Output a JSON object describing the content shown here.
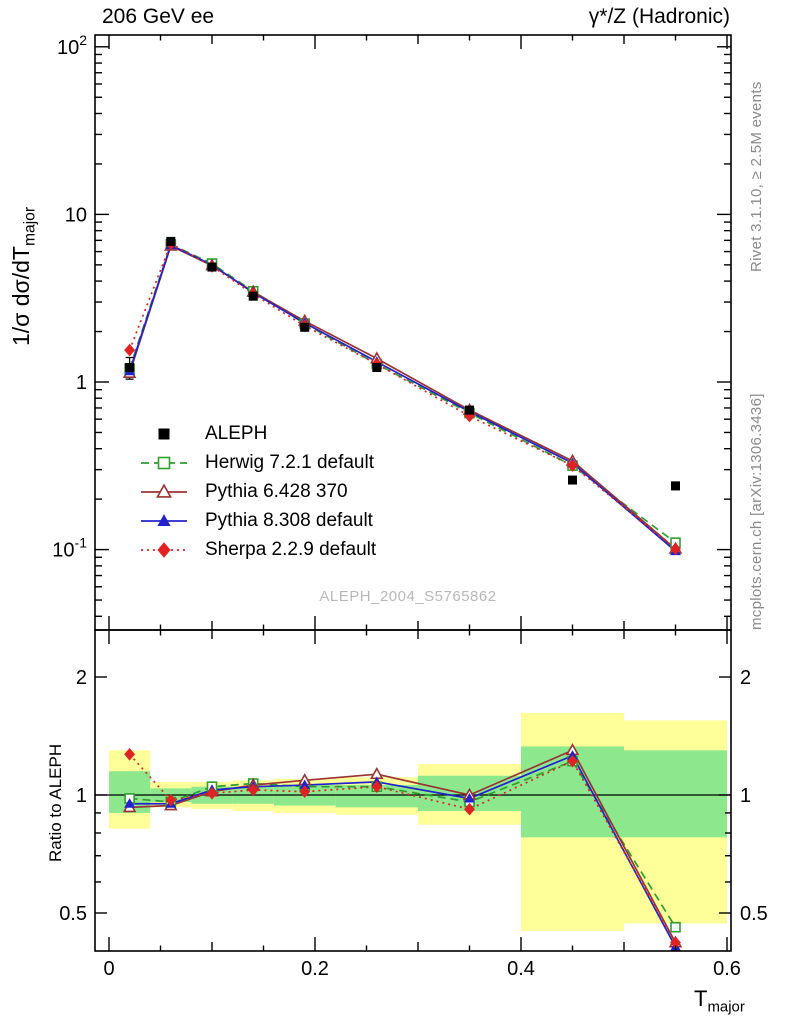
{
  "header": {
    "left": "206 GeV ee",
    "right": "γ*/Z (Hadronic)"
  },
  "side_notes": {
    "top": "Rivet 3.1.10, ≥ 2.5M events",
    "bottom": "mcplots.cern.ch [arXiv:1306.3436]"
  },
  "watermark": "ALEPH_2004_S5765862",
  "axes": {
    "main_ylabel_prefix": "1/σ  dσ/dT",
    "main_ylabel_sub": "major",
    "ratio_ylabel": "Ratio to ALEPH",
    "xlabel_prefix": "T",
    "xlabel_sub": "major",
    "xticks": [
      {
        "v": 0,
        "label": "0"
      },
      {
        "v": 0.2,
        "label": "0.2"
      },
      {
        "v": 0.4,
        "label": "0.4"
      },
      {
        "v": 0.6,
        "label": "0.6"
      }
    ],
    "main_yticks": [
      {
        "v": 100,
        "mantissa": "10",
        "exp": "2"
      },
      {
        "v": 10,
        "mantissa": "10",
        "exp": ""
      },
      {
        "v": 1,
        "mantissa": "1",
        "exp": ""
      },
      {
        "v": 0.1,
        "mantissa": "10",
        "exp": "-1"
      }
    ],
    "ratio_yticks": [
      {
        "v": 2,
        "label": "2"
      },
      {
        "v": 1,
        "label": "1"
      },
      {
        "v": 0.5,
        "label": "0.5"
      }
    ]
  },
  "chart_data": {
    "type": "line",
    "title": "206 GeV ee — γ*/Z (Hadronic), T_major distribution with MC/data ratio",
    "xlabel": "T_major",
    "ylabel": "1/σ dσ/dT_major",
    "ratio_ylabel": "Ratio to ALEPH",
    "x_points": [
      0.02,
      0.06,
      0.1,
      0.14,
      0.19,
      0.26,
      0.35,
      0.45,
      0.55
    ],
    "bin_edges": [
      0,
      0.04,
      0.08,
      0.12,
      0.16,
      0.22,
      0.3,
      0.4,
      0.5,
      0.6
    ],
    "xlim": [
      0,
      0.6
    ],
    "main_axis": {
      "scale": "log",
      "ylim": [
        0.033,
        117
      ]
    },
    "ratio_axis": {
      "scale": "log",
      "ylim": [
        0.4,
        2.63
      ]
    },
    "series": [
      {
        "name": "ALEPH",
        "color": "#000000",
        "marker": "square-filled",
        "line_style": "none",
        "values": [
          1.22,
          6.9,
          4.85,
          3.25,
          2.12,
          1.22,
          0.68,
          0.26,
          0.24
        ],
        "errors": [
          0.18,
          0.15,
          0.1,
          0.07,
          0.05,
          0.035,
          0.02,
          0.012,
          0.012
        ]
      },
      {
        "name": "Herwig 7.2.1 default",
        "color": "#2f9e2f",
        "marker": "square-open",
        "line_style": "dashed",
        "values": [
          1.2,
          6.62,
          5.09,
          3.48,
          2.23,
          1.28,
          0.653,
          0.317,
          0.11
        ],
        "ratio": [
          0.98,
          0.96,
          1.05,
          1.07,
          1.05,
          1.05,
          0.96,
          1.22,
          0.46
        ]
      },
      {
        "name": "Pythia 6.428 370",
        "color": "#993333",
        "marker": "triangle-open",
        "line_style": "solid",
        "values": [
          1.13,
          6.49,
          4.95,
          3.45,
          2.31,
          1.38,
          0.68,
          0.338,
          0.101
        ],
        "ratio": [
          0.93,
          0.94,
          1.02,
          1.06,
          1.09,
          1.13,
          1.0,
          1.3,
          0.42
        ]
      },
      {
        "name": "Pythia 8.308 default",
        "color": "#2222cc",
        "marker": "triangle-filled",
        "line_style": "solid",
        "values": [
          1.16,
          6.56,
          5.0,
          3.41,
          2.25,
          1.32,
          0.666,
          0.328,
          0.098
        ],
        "ratio": [
          0.95,
          0.95,
          1.03,
          1.05,
          1.06,
          1.08,
          0.98,
          1.26,
          0.41
        ]
      },
      {
        "name": "Sherpa 2.2.9 default",
        "color": "#e02222",
        "marker": "diamond-filled",
        "line_style": "dotted",
        "values": [
          1.55,
          6.69,
          4.9,
          3.35,
          2.16,
          1.28,
          0.626,
          0.317,
          0.101
        ],
        "ratio": [
          1.27,
          0.97,
          1.01,
          1.03,
          1.02,
          1.05,
          0.92,
          1.22,
          0.42
        ]
      }
    ],
    "ratio_bands": {
      "yellow_color": "#ffff9a",
      "green_color": "#8de88d",
      "yellow": [
        [
          0.82,
          1.3
        ],
        [
          0.93,
          1.08
        ],
        [
          0.92,
          1.08
        ],
        [
          0.91,
          1.09
        ],
        [
          0.9,
          1.1
        ],
        [
          0.89,
          1.11
        ],
        [
          0.84,
          1.2
        ],
        [
          0.45,
          1.62
        ],
        [
          0.47,
          1.55
        ]
      ],
      "green": [
        [
          0.9,
          1.15
        ],
        [
          0.96,
          1.04
        ],
        [
          0.95,
          1.05
        ],
        [
          0.95,
          1.05
        ],
        [
          0.94,
          1.06
        ],
        [
          0.93,
          1.06
        ],
        [
          0.91,
          1.12
        ],
        [
          0.78,
          1.33
        ],
        [
          0.78,
          1.3
        ]
      ]
    },
    "legend": [
      "ALEPH",
      "Herwig 7.2.1 default",
      "Pythia 6.428 370",
      "Pythia 8.308 default",
      "Sherpa 2.2.9 default"
    ]
  }
}
